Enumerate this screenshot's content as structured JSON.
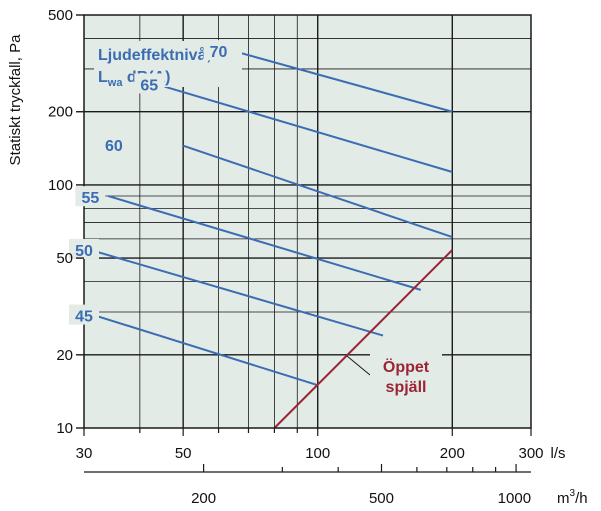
{
  "chart_data": {
    "type": "line",
    "x_scale": "log",
    "y_scale": "log",
    "xlim": [
      30,
      300
    ],
    "ylim": [
      10,
      500
    ],
    "x_ticks": [
      {
        "value": 30,
        "label": "30"
      },
      {
        "value": 50,
        "label": "50"
      },
      {
        "value": 100,
        "label": "100"
      },
      {
        "value": 200,
        "label": "200"
      },
      {
        "value": 300,
        "label": "300"
      }
    ],
    "x_unit": "l/s",
    "x2_ticks": [
      {
        "value": 200,
        "label": "200"
      },
      {
        "value": 500,
        "label": "500"
      },
      {
        "value": 1000,
        "label": "1000"
      }
    ],
    "x2_unit_base": "m",
    "x2_unit_sup": "3",
    "x2_unit_tail": "/h",
    "y_ticks": [
      {
        "value": 10,
        "label": "10"
      },
      {
        "value": 20,
        "label": "20"
      },
      {
        "value": 50,
        "label": "50"
      },
      {
        "value": 100,
        "label": "100"
      },
      {
        "value": 200,
        "label": "200"
      },
      {
        "value": 500,
        "label": "500"
      }
    ],
    "ylabel": "Statiskt tryckfall, Pa",
    "grid": true,
    "sound_legend": {
      "line1": "Ljudeffektnivå,",
      "line2_base": "L",
      "line2_sub": "wa",
      "line2_tail": " dB(A)"
    },
    "damper_label": [
      "Öppet",
      "spjäll"
    ],
    "colors": {
      "sound_lines": "#3b6db3",
      "damper_line": "#9b2335",
      "plot_background": "#e3ebe6",
      "grid": "#1a1a1a"
    },
    "series": [
      {
        "name": "70",
        "points": [
          [
            65,
            355
          ],
          [
            200,
            200
          ]
        ]
      },
      {
        "name": "65",
        "points": [
          [
            45,
            255
          ],
          [
            200,
            113
          ]
        ]
      },
      {
        "name": "60",
        "points": [
          [
            50,
            145
          ],
          [
            200,
            61
          ]
        ]
      },
      {
        "name": "55",
        "points": [
          [
            34,
            90
          ],
          [
            170,
            37
          ]
        ]
      },
      {
        "name": "50",
        "points": [
          [
            30,
            55
          ],
          [
            140,
            24
          ]
        ]
      },
      {
        "name": "45",
        "points": [
          [
            30,
            30
          ],
          [
            100,
            15
          ]
        ]
      },
      {
        "name": "Öppet spjäll",
        "points": [
          [
            80,
            10
          ],
          [
            200,
            54
          ]
        ]
      }
    ],
    "series_label_positions": [
      {
        "name": "70",
        "x": 60,
        "y": 355
      },
      {
        "name": "65",
        "x": 42,
        "y": 259
      },
      {
        "name": "60",
        "x": 35,
        "y": 146
      },
      {
        "name": "55",
        "x": 31,
        "y": 89
      },
      {
        "name": "50",
        "x": 30,
        "y": 54
      },
      {
        "name": "45",
        "x": 30,
        "y": 29
      }
    ]
  }
}
